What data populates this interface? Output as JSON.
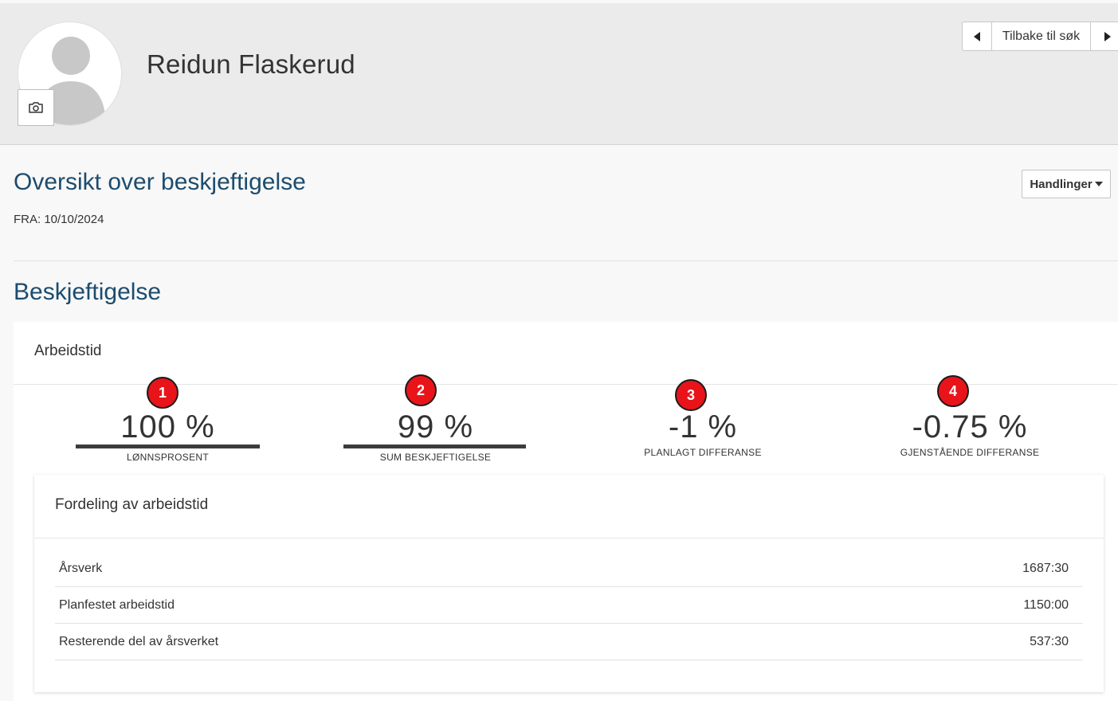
{
  "header": {
    "name": "Reidun Flaskerud",
    "nav": {
      "prev_icon": "caret-left-icon",
      "back_label": "Tilbake til søk",
      "next_icon": "caret-right-icon"
    },
    "avatar_icon": "person-silhouette-icon",
    "camera_icon": "camera-icon"
  },
  "overview": {
    "title": "Oversikt over beskjeftigelse",
    "from": "FRA: 10/10/2024",
    "actions_label": "Handlinger",
    "actions_icon": "caret-down-icon"
  },
  "employment": {
    "title": "Beskjeftigelse",
    "card_title": "Arbeidstid",
    "metrics": [
      {
        "marker": "1",
        "value": "100 %",
        "label": "LØNNSPROSENT",
        "bar_fill": 1.0
      },
      {
        "marker": "2",
        "value": "99 %",
        "label": "SUM BESKJEFTIGELSE",
        "bar_fill": 0.99
      },
      {
        "marker": "3",
        "value": "-1 %",
        "label": "PLANLAGT DIFFERANSE"
      },
      {
        "marker": "4",
        "value": "-0.75 %",
        "label": "GJENSTÅENDE DIFFERANSE"
      }
    ],
    "distribution": {
      "title": "Fordeling av arbeidstid",
      "rows": [
        {
          "label": "Årsverk",
          "value": "1687:30"
        },
        {
          "label": "Planfestet arbeidstid",
          "value": "1150:00"
        },
        {
          "label": "Resterende del av årsverket",
          "value": "537:30"
        }
      ]
    }
  },
  "colors": {
    "accent": "#1c4c6e",
    "marker": "#e8141a",
    "header_bg": "#ebebec"
  }
}
